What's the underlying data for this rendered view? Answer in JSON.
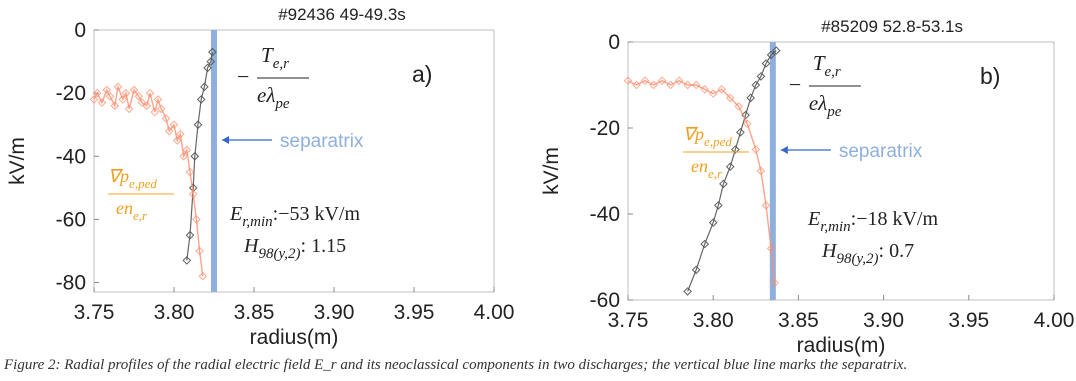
{
  "chart_data": [
    {
      "type": "scatter",
      "panel_label": "a)",
      "title": "#92436 49-49.3s",
      "xlabel": "radius(m)",
      "ylabel": "kV/m",
      "xlim": [
        3.75,
        4.0
      ],
      "ylim": [
        -83,
        0
      ],
      "xticks": [
        "3.75",
        "3.80",
        "3.85",
        "3.90",
        "3.95",
        "4.00"
      ],
      "yticks": [
        "0",
        "-20",
        "-40",
        "-60",
        "-80"
      ],
      "separatrix_x": 3.825,
      "separatrix_label": "separatrix",
      "temp_label": {
        "prefix": "−",
        "numerator": "T",
        "numerator_sub": "e,r",
        "denominator": "eλ",
        "denominator_sub": "pe"
      },
      "grad_label": {
        "numerator": "∇p",
        "numerator_sub": "e,ped",
        "denominator": "en",
        "denominator_sub": "e,r"
      },
      "er_min_label": {
        "name": "E",
        "sub": "r,min",
        "value": ":−53 kV/m"
      },
      "h98_label": {
        "name": "H",
        "sub": "98(y,2)",
        "value": ": 1.15"
      },
      "series": [
        {
          "role": "temperature",
          "x": [
            3.808,
            3.81,
            3.812,
            3.813,
            3.815,
            3.817,
            3.819,
            3.821,
            3.823,
            3.824
          ],
          "y": [
            -73,
            -65,
            -50,
            -40,
            -30,
            -22,
            -18,
            -12,
            -10,
            -7
          ]
        },
        {
          "role": "pressure",
          "x": [
            3.75,
            3.752,
            3.755,
            3.758,
            3.76,
            3.763,
            3.765,
            3.768,
            3.77,
            3.772,
            3.775,
            3.778,
            3.78,
            3.783,
            3.785,
            3.788,
            3.79,
            3.792,
            3.795,
            3.797,
            3.8,
            3.802,
            3.804,
            3.806,
            3.808,
            3.81,
            3.812,
            3.814,
            3.816,
            3.818
          ],
          "y": [
            -22,
            -20,
            -23,
            -19,
            -21,
            -24,
            -18,
            -22,
            -20,
            -25,
            -19,
            -21,
            -23,
            -24,
            -20,
            -26,
            -22,
            -25,
            -28,
            -32,
            -30,
            -35,
            -33,
            -40,
            -38,
            -45,
            -52,
            -60,
            -70,
            -78
          ]
        }
      ]
    },
    {
      "type": "scatter",
      "panel_label": "b)",
      "title": "#85209 52.8-53.1s",
      "xlabel": "radius(m)",
      "ylabel": "kV/m",
      "xlim": [
        3.75,
        4.0
      ],
      "ylim": [
        -60,
        0
      ],
      "xticks": [
        "3.75",
        "3.80",
        "3.85",
        "3.90",
        "3.95",
        "4.00"
      ],
      "yticks": [
        "0",
        "-20",
        "-40",
        "-60"
      ],
      "separatrix_x": 3.835,
      "separatrix_label": "separatrix",
      "temp_label": {
        "prefix": "−",
        "numerator": "T",
        "numerator_sub": "e,r",
        "denominator": "eλ",
        "denominator_sub": "pe"
      },
      "grad_label": {
        "numerator": "∇p",
        "numerator_sub": "e,ped",
        "denominator": "en",
        "denominator_sub": "e,r"
      },
      "er_min_label": {
        "name": "E",
        "sub": "r,min",
        "value": ":−18 kV/m"
      },
      "h98_label": {
        "name": "H",
        "sub": "98(y,2)",
        "value": ": 0.7"
      },
      "series": [
        {
          "role": "temperature",
          "x": [
            3.785,
            3.79,
            3.795,
            3.8,
            3.803,
            3.806,
            3.81,
            3.813,
            3.816,
            3.819,
            3.822,
            3.825,
            3.828,
            3.831,
            3.834,
            3.837
          ],
          "y": [
            -58,
            -53,
            -47,
            -42,
            -38,
            -33,
            -29,
            -25,
            -21,
            -17,
            -13,
            -10,
            -8,
            -5,
            -3,
            -2
          ]
        },
        {
          "role": "pressure",
          "x": [
            3.75,
            3.755,
            3.76,
            3.765,
            3.77,
            3.775,
            3.78,
            3.785,
            3.79,
            3.795,
            3.8,
            3.805,
            3.81,
            3.815,
            3.82,
            3.825,
            3.828,
            3.831,
            3.834,
            3.836
          ],
          "y": [
            -9,
            -10,
            -9,
            -10,
            -9,
            -10,
            -9,
            -10,
            -10,
            -11,
            -12,
            -11,
            -13,
            -15,
            -19,
            -25,
            -30,
            -38,
            -48,
            -56
          ]
        }
      ]
    }
  ],
  "colors": {
    "temperature": "#555555",
    "pressure": "#ff8c6b",
    "separatrix": "#8fb0dc",
    "grad_label": "#f0a020"
  },
  "caption": "Figure 2: Radial profiles of the radial electric field E_r and its neoclassical components in two discharges; the vertical blue line marks the separatrix."
}
